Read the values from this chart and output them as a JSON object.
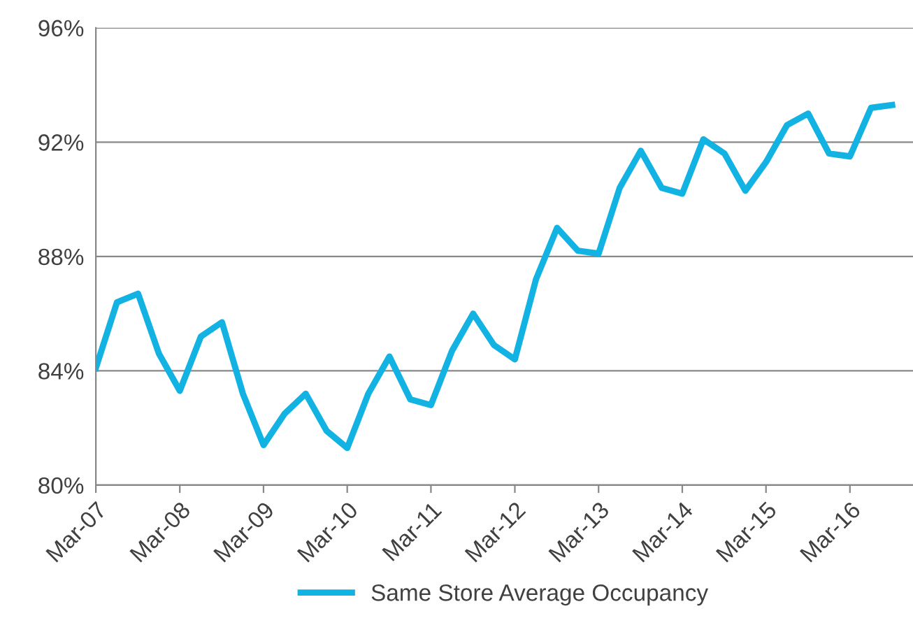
{
  "chart_data": {
    "type": "line",
    "x": [
      "2007-03",
      "2007-06",
      "2007-09",
      "2007-12",
      "2008-03",
      "2008-06",
      "2008-09",
      "2008-12",
      "2009-03",
      "2009-06",
      "2009-09",
      "2009-12",
      "2010-03",
      "2010-06",
      "2010-09",
      "2010-12",
      "2011-03",
      "2011-06",
      "2011-09",
      "2011-12",
      "2012-03",
      "2012-06",
      "2012-09",
      "2012-12",
      "2013-03",
      "2013-06",
      "2013-09",
      "2013-12",
      "2014-03",
      "2014-06",
      "2014-09",
      "2014-12",
      "2015-03",
      "2015-06",
      "2015-09",
      "2015-12",
      "2016-03",
      "2016-06",
      "2016-09"
    ],
    "series": [
      {
        "name": "Same Store Average Occupancy",
        "color": "#12b2e2",
        "values": [
          84.1,
          86.4,
          86.7,
          84.6,
          83.3,
          85.2,
          85.7,
          83.2,
          81.4,
          82.5,
          83.2,
          81.9,
          81.3,
          83.2,
          84.5,
          83.0,
          82.8,
          84.7,
          86.0,
          84.9,
          84.4,
          87.2,
          89.0,
          88.2,
          88.1,
          90.4,
          91.7,
          90.4,
          90.2,
          92.1,
          91.6,
          90.3,
          91.3,
          92.6,
          93.0,
          91.6,
          91.5,
          93.2,
          93.3
        ]
      }
    ],
    "xlim": [
      "2007-03",
      "2016-12"
    ],
    "xticks": [
      {
        "value": "2007-03",
        "label": "Mar-07"
      },
      {
        "value": "2008-03",
        "label": "Mar-08"
      },
      {
        "value": "2009-03",
        "label": "Mar-09"
      },
      {
        "value": "2010-03",
        "label": "Mar-10"
      },
      {
        "value": "2011-03",
        "label": "Mar-11"
      },
      {
        "value": "2012-03",
        "label": "Mar-12"
      },
      {
        "value": "2013-03",
        "label": "Mar-13"
      },
      {
        "value": "2014-03",
        "label": "Mar-14"
      },
      {
        "value": "2015-03",
        "label": "Mar-15"
      },
      {
        "value": "2016-03",
        "label": "Mar-16"
      }
    ],
    "ylim": [
      80,
      96
    ],
    "yticks": [
      {
        "value": 80,
        "label": "80%"
      },
      {
        "value": 84,
        "label": "84%"
      },
      {
        "value": 88,
        "label": "88%"
      },
      {
        "value": 92,
        "label": "92%"
      },
      {
        "value": 96,
        "label": "96%"
      }
    ],
    "grid": "y",
    "legend": "bottom",
    "marker": "none",
    "line_style": "solid"
  }
}
